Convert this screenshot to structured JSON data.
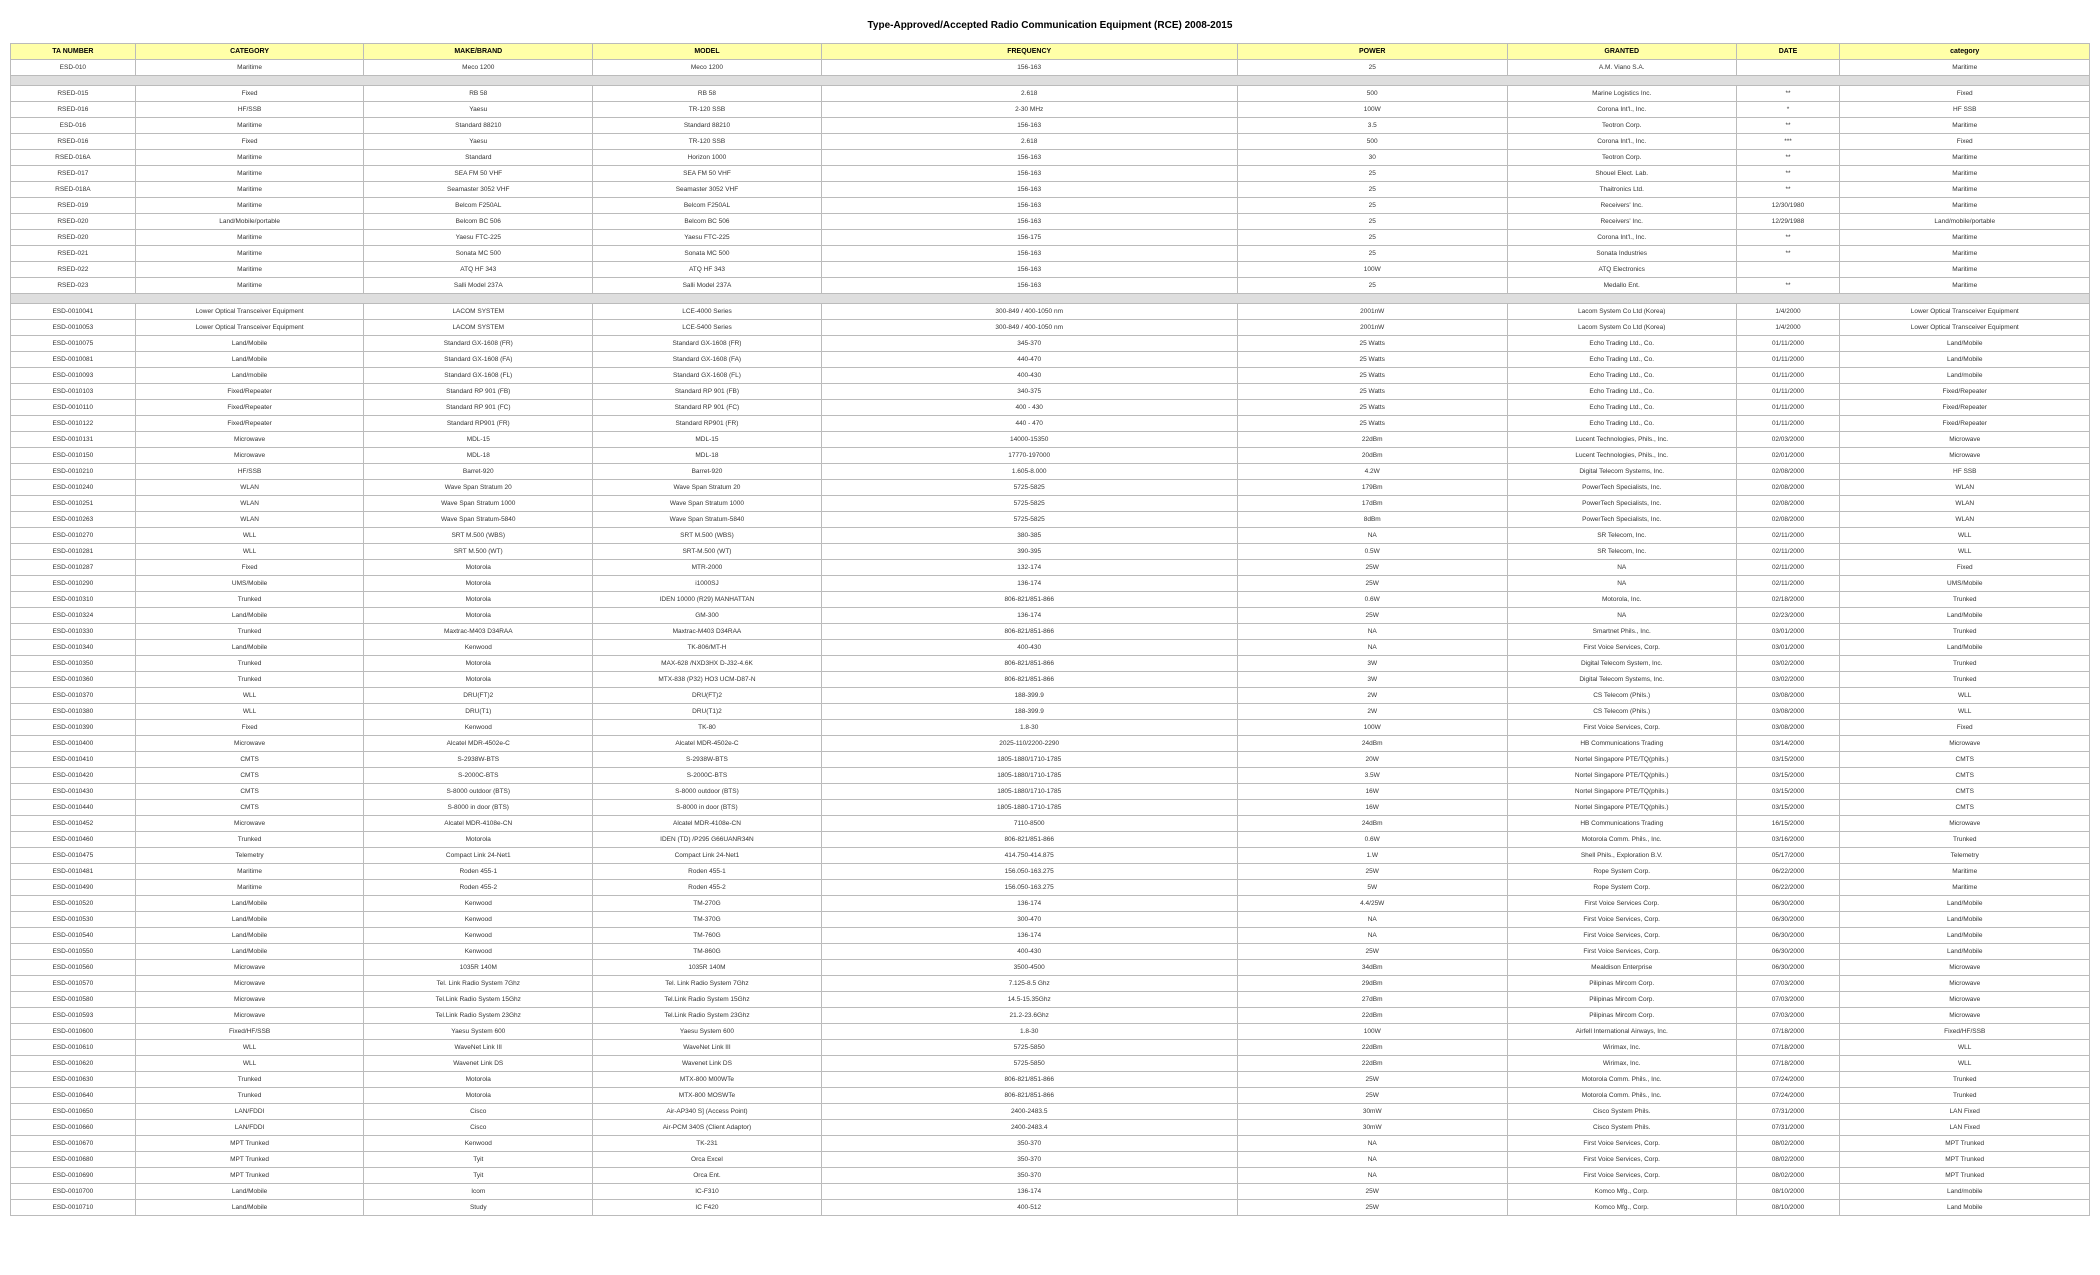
{
  "title": "Type-Approved/Accepted Radio Communication Equipment (RCE) 2008-2015",
  "columns": [
    "TA NUMBER",
    "CATEGORY",
    "MAKE/BRAND",
    "MODEL",
    "FREQUENCY",
    "POWER",
    "GRANTED",
    "DATE",
    "category"
  ],
  "groups": [
    [
      [
        "ESD-010",
        "Maritime",
        "Meco 1200",
        "Meco 1200",
        "156-163",
        "25",
        "A.M. Viano S.A.",
        "",
        "Maritime"
      ]
    ],
    [
      [
        "RSED-015",
        "Fixed",
        "RB 58",
        "RB 58",
        "2.618",
        "500",
        "Marine Logistics Inc.",
        "**",
        "Fixed"
      ],
      [
        "RSED-016",
        "HF/SSB",
        "Yaesu",
        "TR-120 SSB",
        "2-30 MHz",
        "100W",
        "Corona Int'l., Inc.",
        "*",
        "HF SSB"
      ],
      [
        "ESD-016",
        "Maritime",
        "Standard 88210",
        "Standard 88210",
        "156-163",
        "3.5",
        "Teotron Corp.",
        "**",
        "Maritime"
      ],
      [
        "RSED-016",
        "Fixed",
        "Yaesu",
        "TR-120 SSB",
        "2.618",
        "500",
        "Corona Int'l., Inc.",
        "***",
        "Fixed"
      ],
      [
        "RSED-016A",
        "Maritime",
        "Standard",
        "Horizon 1000",
        "156-163",
        "30",
        "Teotron Corp.",
        "**",
        "Maritime"
      ],
      [
        "RSED-017",
        "Maritime",
        "SEA FM 50 VHF",
        "SEA FM 50 VHF",
        "156-163",
        "25",
        "Shouel Elect. Lab.",
        "**",
        "Maritime"
      ],
      [
        "RSED-018A",
        "Maritime",
        "Seamaster 3052 VHF",
        "Seamaster 3052 VHF",
        "156-163",
        "25",
        "Thaitronics Ltd.",
        "**",
        "Maritime"
      ],
      [
        "RSED-019",
        "Maritime",
        "Belcom F250AL",
        "Belcom F250AL",
        "156-163",
        "25",
        "Receivers' Inc.",
        "12/30/1980",
        "Maritime"
      ],
      [
        "RSED-020",
        "Land/Mobile/portable",
        "Belcom BC 506",
        "Belcom BC 506",
        "156-163",
        "25",
        "Receivers' Inc.",
        "12/29/1988",
        "Land/mobile/portable"
      ],
      [
        "RSED-020",
        "Maritime",
        "Yaesu FTC-225",
        "Yaesu FTC-225",
        "156-175",
        "25",
        "Corona Int'l., Inc.",
        "**",
        "Maritime"
      ],
      [
        "RSED-021",
        "Maritime",
        "Sonata MC 500",
        "Sonata MC 500",
        "156-163",
        "25",
        "Sonata Industries",
        "**",
        "Maritime"
      ],
      [
        "RSED-022",
        "Maritime",
        "ATQ HF 343",
        "ATQ HF 343",
        "156-163",
        "100W",
        "ATQ Electronics",
        "",
        "Maritime"
      ],
      [
        "RSED-023",
        "Maritime",
        "Salli Model 237A",
        "Salli Model 237A",
        "156-163",
        "25",
        "Medallo Ent.",
        "**",
        "Maritime"
      ]
    ],
    [
      [
        "ESD-0010041",
        "Lower Optical Transceiver Equipment",
        "LACOM SYSTEM",
        "LCE-4000 Series",
        "300-849 / 400-1050 nm",
        "2001nW",
        "Lacom System Co Ltd (Korea)",
        "1/4/2000",
        "Lower Optical Transceiver Equipment"
      ],
      [
        "ESD-0010053",
        "Lower Optical Transceiver Equipment",
        "LACOM SYSTEM",
        "LCE-5400 Series",
        "300-849 / 400-1050 nm",
        "2001nW",
        "Lacom System Co Ltd (Korea)",
        "1/4/2000",
        "Lower Optical Transceiver Equipment"
      ],
      [
        "ESD-0010075",
        "Land/Mobile",
        "Standard GX-1608 (FR)",
        "Standard GX-1608 (FR)",
        "345-370",
        "25 Watts",
        "Echo Trading Ltd., Co.",
        "01/11/2000",
        "Land/Mobile"
      ],
      [
        "ESD-0010081",
        "Land/Mobile",
        "Standard GX-1608 (FA)",
        "Standard GX-1608 (FA)",
        "440-470",
        "25 Watts",
        "Echo Trading Ltd., Co.",
        "01/11/2000",
        "Land/Mobile"
      ],
      [
        "ESD-0010093",
        "Land/mobile",
        "Standard GX-1608 (FL)",
        "Standard GX-1608 (FL)",
        "400-430",
        "25 Watts",
        "Echo Trading Ltd., Co.",
        "01/11/2000",
        "Land/mobile"
      ],
      [
        "ESD-0010103",
        "Fixed/Repeater",
        "Standard RP 901 (FB)",
        "Standard RP 901 (FB)",
        "340-375",
        "25 Watts",
        "Echo Trading Ltd., Co.",
        "01/11/2000",
        "Fixed/Repeater"
      ],
      [
        "ESD-0010110",
        "Fixed/Repeater",
        "Standard RP 901 (FC)",
        "Standard RP 901 (FC)",
        "400 - 430",
        "25 Watts",
        "Echo Trading Ltd., Co.",
        "01/11/2000",
        "Fixed/Repeater"
      ],
      [
        "ESD-0010122",
        "Fixed/Repeater",
        "Standard RP901 (FR)",
        "Standard RP901 (FR)",
        "440 - 470",
        "25 Watts",
        "Echo Trading Ltd., Co.",
        "01/11/2000",
        "Fixed/Repeater"
      ],
      [
        "ESD-0010131",
        "Microwave",
        "MDL-15",
        "MDL-15",
        "14000-15350",
        "22dBm",
        "Lucent Technologies, Phils., Inc.",
        "02/03/2000",
        "Microwave"
      ],
      [
        "ESD-0010150",
        "Microwave",
        "MDL-18",
        "MDL-18",
        "17770-197000",
        "20dBm",
        "Lucent Technologies, Phils., Inc.",
        "02/01/2000",
        "Microwave"
      ],
      [
        "ESD-0010210",
        "HF/SSB",
        "Barret-920",
        "Barret-920",
        "1.605-8.000",
        "4.2W",
        "Digital Telecom Systems, Inc.",
        "02/08/2000",
        "HF SSB"
      ],
      [
        "ESD-0010240",
        "WLAN",
        "Wave Span Stratum 20",
        "Wave Span Stratum 20",
        "5725-5825",
        "179Bm",
        "PowerTech Specialists, Inc.",
        "02/08/2000",
        "WLAN"
      ],
      [
        "ESD-0010251",
        "WLAN",
        "Wave Span Stratum 1000",
        "Wave Span Stratum 1000",
        "5725-5825",
        "17dBm",
        "PowerTech Specialists, Inc.",
        "02/08/2000",
        "WLAN"
      ],
      [
        "ESD-0010263",
        "WLAN",
        "Wave Span Stratum-5840",
        "Wave Span Stratum-5840",
        "5725-5825",
        "8dBm",
        "PowerTech Specialists, Inc.",
        "02/08/2000",
        "WLAN"
      ],
      [
        "ESD-0010270",
        "WLL",
        "SRT M.500 (WBS)",
        "SRT M.500 (WBS)",
        "380-385",
        "NA",
        "SR Telecom, Inc.",
        "02/11/2000",
        "WLL"
      ],
      [
        "ESD-0010281",
        "WLL",
        "SRT M.500 (WT)",
        "SRT-M.500 (WT)",
        "390-395",
        "0.5W",
        "SR Telecom, Inc.",
        "02/11/2000",
        "WLL"
      ],
      [
        "ESD-0010287",
        "Fixed",
        "Motorola",
        "MTR-2000",
        "132-174",
        "25W",
        "NA",
        "02/11/2000",
        "Fixed"
      ],
      [
        "ESD-0010290",
        "UMS/Mobile",
        "Motorola",
        "i1000SJ",
        "136-174",
        "25W",
        "NA",
        "02/11/2000",
        "UMS/Mobile"
      ],
      [
        "ESD-0010310",
        "Trunked",
        "Motorola",
        "IDEN 10000 (R29) MANHATTAN",
        "806-821/851-866",
        "0.6W",
        "Motorola, Inc.",
        "02/18/2000",
        "Trunked"
      ],
      [
        "ESD-0010324",
        "Land/Mobile",
        "Motorola",
        "GM-300",
        "136-174",
        "25W",
        "NA",
        "02/23/2000",
        "Land/Mobile"
      ],
      [
        "ESD-0010330",
        "Trunked",
        "Maxtrac-M403 D34RAA",
        "Maxtrac-M403 D34RAA",
        "806-821/851-866",
        "NA",
        "Smartnet Phils., Inc.",
        "03/01/2000",
        "Trunked"
      ],
      [
        "ESD-0010340",
        "Land/Mobile",
        "Kenwood",
        "TK-806/MT-H",
        "400-430",
        "NA",
        "First Voice Services, Corp.",
        "03/01/2000",
        "Land/Mobile"
      ],
      [
        "ESD-0010350",
        "Trunked",
        "Motorola",
        "MAX-628 /NXD3HX D-J32-4.6K",
        "806-821/851-866",
        "3W",
        "Digital Telecom System, Inc.",
        "03/02/2000",
        "Trunked"
      ],
      [
        "ESD-0010360",
        "Trunked",
        "Motorola",
        "MTX-838 (P32) HO3 UCM-D87-N",
        "806-821/851-866",
        "3W",
        "Digital Telecom Systems, Inc.",
        "03/02/2000",
        "Trunked"
      ],
      [
        "ESD-0010370",
        "WLL",
        "DRU(FT)2",
        "DRU(FT)2",
        "188-399.9",
        "2W",
        "CS Telecom (Phils.)",
        "03/08/2000",
        "WLL"
      ],
      [
        "ESD-0010380",
        "WLL",
        "DRU(T1)",
        "DRU(T1)2",
        "188-399.9",
        "2W",
        "CS Telecom (Phils.)",
        "03/08/2000",
        "WLL"
      ],
      [
        "ESD-0010390",
        "Fixed",
        "Kenwood",
        "TK-80",
        "1.8-30",
        "100W",
        "First Voice Services, Corp.",
        "03/08/2000",
        "Fixed"
      ],
      [
        "ESD-0010400",
        "Microwave",
        "Alcatel MDR-4502e-C",
        "Alcatel MDR-4502e-C",
        "2025-110/2200-2290",
        "24dBm",
        "HB Communications Trading",
        "03/14/2000",
        "Microwave"
      ],
      [
        "ESD-0010410",
        "CMTS",
        "S-2938W-BTS",
        "S-2938W-BTS",
        "1805-1880/1710-1785",
        "20W",
        "Nortel Singapore PTE/TQ(phils.)",
        "03/15/2000",
        "CMTS"
      ],
      [
        "ESD-0010420",
        "CMTS",
        "S-2000C-BTS",
        "S-2000C-BTS",
        "1805-1880/1710-1785",
        "3.5W",
        "Nortel Singapore PTE/TQ(phils.)",
        "03/15/2000",
        "CMTS"
      ],
      [
        "ESD-0010430",
        "CMTS",
        "S-8000 outdoor (BTS)",
        "S-8000 outdoor (BTS)",
        "1805-1880/1710-1785",
        "16W",
        "Nortel Singapore PTE/TQ(phils.)",
        "03/15/2000",
        "CMTS"
      ],
      [
        "ESD-0010440",
        "CMTS",
        "S-8000 in door (BTS)",
        "S-8000 in door (BTS)",
        "1805-1880-1710-1785",
        "16W",
        "Nortel Singapore PTE/TQ(phils.)",
        "03/15/2000",
        "CMTS"
      ],
      [
        "ESD-0010452",
        "Microwave",
        "Alcatel MDR-4108e-CN",
        "Alcatel MDR-4108e-CN",
        "7110-8500",
        "24dBm",
        "HB Communications Trading",
        "16/15/2000",
        "Microwave"
      ],
      [
        "ESD-0010460",
        "Trunked",
        "Motorola",
        "IDEN (TD) /P295 G66UANR34N",
        "806-821/851-866",
        "0.6W",
        "Motorola Comm. Phils., Inc.",
        "03/16/2000",
        "Trunked"
      ],
      [
        "ESD-0010475",
        "Telemetry",
        "Compact Link 24-Net1",
        "Compact Link 24-Net1",
        "414.750-414.875",
        "1.W",
        "Shell Phils., Exploration B.V.",
        "05/17/2000",
        "Telemetry"
      ],
      [
        "ESD-0010481",
        "Maritime",
        "Roden 455-1",
        "Roden 455-1",
        "156.050-163.275",
        "25W",
        "Rope System Corp.",
        "06/22/2000",
        "Maritime"
      ],
      [
        "ESD-0010490",
        "Maritime",
        "Roden 455-2",
        "Roden 455-2",
        "156.050-163.275",
        "5W",
        "Rope System Corp.",
        "06/22/2000",
        "Maritime"
      ],
      [
        "ESD-0010520",
        "Land/Mobile",
        "Kenwood",
        "TM-270G",
        "136-174",
        "4.4/25W",
        "First Voice Services Corp.",
        "06/30/2000",
        "Land/Mobile"
      ],
      [
        "ESD-0010530",
        "Land/Mobile",
        "Kenwood",
        "TM-370G",
        "300-470",
        "NA",
        "First Voice Services, Corp.",
        "06/30/2000",
        "Land/Mobile"
      ],
      [
        "ESD-0010540",
        "Land/Mobile",
        "Kenwood",
        "TM-760G",
        "136-174",
        "NA",
        "First Voice Services, Corp.",
        "06/30/2000",
        "Land/Mobile"
      ],
      [
        "ESD-0010550",
        "Land/Mobile",
        "Kenwood",
        "TM-860G",
        "400-430",
        "25W",
        "First Voice Services, Corp.",
        "06/30/2000",
        "Land/Mobile"
      ],
      [
        "ESD-0010560",
        "Microwave",
        "1035R 140M",
        "1035R 140M",
        "3500-4500",
        "34dBm",
        "Mealdison Enterprise",
        "06/30/2000",
        "Microwave"
      ],
      [
        "ESD-0010570",
        "Microwave",
        "Tel. Link Radio System 7Ghz",
        "Tel. Link Radio System 7Ghz",
        "7.125-8.5 Ghz",
        "29dBm",
        "Pilipinas Mircom Corp.",
        "07/03/2000",
        "Microwave"
      ],
      [
        "ESD-0010580",
        "Microwave",
        "Tel.Link Radio System 15Ghz",
        "Tel.Link Radio System 15Ghz",
        "14.5-15.35Ghz",
        "27dBm",
        "Pilipinas Mircom Corp.",
        "07/03/2000",
        "Microwave"
      ],
      [
        "ESD-0010593",
        "Microwave",
        "Tel.Link Radio System 23Ghz",
        "Tel.Link Radio System 23Ghz",
        "21.2-23.6Ghz",
        "22dBm",
        "Pilipinas Mircom Corp.",
        "07/03/2000",
        "Microwave"
      ],
      [
        "ESD-0010600",
        "Fixed/HF/SSB",
        "Yaesu System 600",
        "Yaesu System 600",
        "1.8-30",
        "100W",
        "Airfell International Airways, Inc.",
        "07/18/2000",
        "Fixed/HF/SSB"
      ],
      [
        "ESD-0010610",
        "WLL",
        "WaveNet Link III",
        "WaveNet Link III",
        "5725-5850",
        "22dBm",
        "Wirimax, Inc.",
        "07/18/2000",
        "WLL"
      ],
      [
        "ESD-0010620",
        "WLL",
        "Wavenet Link DS",
        "Wavenet Link DS",
        "5725-5850",
        "22dBm",
        "Wirimax, Inc.",
        "07/18/2000",
        "WLL"
      ],
      [
        "ESD-0010630",
        "Trunked",
        "Motorola",
        "MTX-800 M00WTe",
        "806-821/851-866",
        "25W",
        "Motorola Comm. Phils., Inc.",
        "07/24/2000",
        "Trunked"
      ],
      [
        "ESD-0010640",
        "Trunked",
        "Motorola",
        "MTX-800 MOSWTe",
        "806-821/851-866",
        "25W",
        "Motorola Comm. Phils., Inc.",
        "07/24/2000",
        "Trunked"
      ],
      [
        "ESD-0010650",
        "LAN/FDDI",
        "Cisco",
        "Air-AP340 S] (Access Point)",
        "2400-2483.5",
        "30mW",
        "Cisco System Phils.",
        "07/31/2000",
        "LAN Fixed"
      ],
      [
        "ESD-0010660",
        "LAN/FDDI",
        "Cisco",
        "Air-PCM 340S (Client Adaptor)",
        "2400-2483.4",
        "30mW",
        "Cisco System Phils.",
        "07/31/2000",
        "LAN Fixed"
      ],
      [
        "ESD-0010670",
        "MPT Trunked",
        "Kenwood",
        "TK-231",
        "350-370",
        "NA",
        "First Voice Services, Corp.",
        "08/02/2000",
        "MPT Trunked"
      ],
      [
        "ESD-0010680",
        "MPT Trunked",
        "Tyit",
        "Orca Excel",
        "350-370",
        "NA",
        "First Voice Services, Corp.",
        "08/02/2000",
        "MPT Trunked"
      ],
      [
        "ESD-0010690",
        "MPT Trunked",
        "Tyit",
        "Orca Ent.",
        "350-370",
        "NA",
        "First Voice Services, Corp.",
        "08/02/2000",
        "MPT Trunked"
      ],
      [
        "ESD-0010700",
        "Land/Mobile",
        "Icom",
        "IC-F310",
        "136-174",
        "25W",
        "Komco Mfg., Corp.",
        "08/10/2000",
        "Land/mobile"
      ],
      [
        "ESD-0010710",
        "Land/Mobile",
        "Study",
        "IC F420",
        "400-512",
        "25W",
        "Komco Mfg., Corp.",
        "08/10/2000",
        "Land Mobile"
      ]
    ]
  ],
  "colors": {
    "header_bg": "#ffffa8",
    "spacer_bg": "#dedede",
    "border": "#bbbbbb",
    "text": "#333333"
  }
}
